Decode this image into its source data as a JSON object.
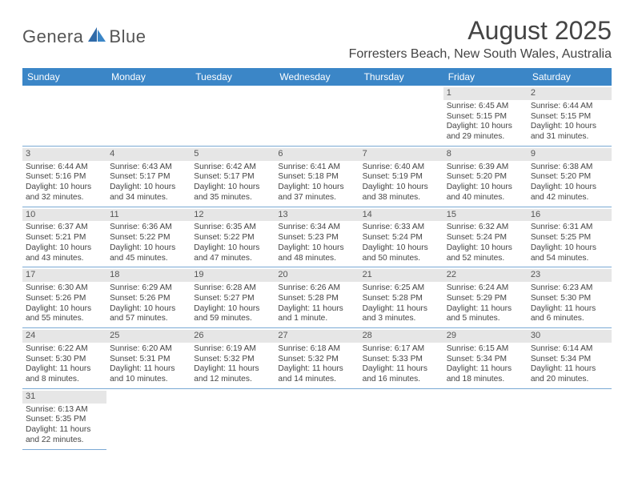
{
  "brand": {
    "name_l": "Genera",
    "name_r": "Blue"
  },
  "title": "August 2025",
  "location": "Forresters Beach, New South Wales, Australia",
  "colors": {
    "header_bg": "#3b86c7",
    "daynum_bg": "#e6e6e6",
    "divider": "#7aa9d4",
    "title_color": "#444444"
  },
  "day_headers": [
    "Sunday",
    "Monday",
    "Tuesday",
    "Wednesday",
    "Thursday",
    "Friday",
    "Saturday"
  ],
  "weeks": [
    [
      null,
      null,
      null,
      null,
      null,
      {
        "n": "1",
        "sr": "Sunrise: 6:45 AM",
        "ss": "Sunset: 5:15 PM",
        "d1": "Daylight: 10 hours",
        "d2": "and 29 minutes."
      },
      {
        "n": "2",
        "sr": "Sunrise: 6:44 AM",
        "ss": "Sunset: 5:15 PM",
        "d1": "Daylight: 10 hours",
        "d2": "and 31 minutes."
      }
    ],
    [
      {
        "n": "3",
        "sr": "Sunrise: 6:44 AM",
        "ss": "Sunset: 5:16 PM",
        "d1": "Daylight: 10 hours",
        "d2": "and 32 minutes."
      },
      {
        "n": "4",
        "sr": "Sunrise: 6:43 AM",
        "ss": "Sunset: 5:17 PM",
        "d1": "Daylight: 10 hours",
        "d2": "and 34 minutes."
      },
      {
        "n": "5",
        "sr": "Sunrise: 6:42 AM",
        "ss": "Sunset: 5:17 PM",
        "d1": "Daylight: 10 hours",
        "d2": "and 35 minutes."
      },
      {
        "n": "6",
        "sr": "Sunrise: 6:41 AM",
        "ss": "Sunset: 5:18 PM",
        "d1": "Daylight: 10 hours",
        "d2": "and 37 minutes."
      },
      {
        "n": "7",
        "sr": "Sunrise: 6:40 AM",
        "ss": "Sunset: 5:19 PM",
        "d1": "Daylight: 10 hours",
        "d2": "and 38 minutes."
      },
      {
        "n": "8",
        "sr": "Sunrise: 6:39 AM",
        "ss": "Sunset: 5:20 PM",
        "d1": "Daylight: 10 hours",
        "d2": "and 40 minutes."
      },
      {
        "n": "9",
        "sr": "Sunrise: 6:38 AM",
        "ss": "Sunset: 5:20 PM",
        "d1": "Daylight: 10 hours",
        "d2": "and 42 minutes."
      }
    ],
    [
      {
        "n": "10",
        "sr": "Sunrise: 6:37 AM",
        "ss": "Sunset: 5:21 PM",
        "d1": "Daylight: 10 hours",
        "d2": "and 43 minutes."
      },
      {
        "n": "11",
        "sr": "Sunrise: 6:36 AM",
        "ss": "Sunset: 5:22 PM",
        "d1": "Daylight: 10 hours",
        "d2": "and 45 minutes."
      },
      {
        "n": "12",
        "sr": "Sunrise: 6:35 AM",
        "ss": "Sunset: 5:22 PM",
        "d1": "Daylight: 10 hours",
        "d2": "and 47 minutes."
      },
      {
        "n": "13",
        "sr": "Sunrise: 6:34 AM",
        "ss": "Sunset: 5:23 PM",
        "d1": "Daylight: 10 hours",
        "d2": "and 48 minutes."
      },
      {
        "n": "14",
        "sr": "Sunrise: 6:33 AM",
        "ss": "Sunset: 5:24 PM",
        "d1": "Daylight: 10 hours",
        "d2": "and 50 minutes."
      },
      {
        "n": "15",
        "sr": "Sunrise: 6:32 AM",
        "ss": "Sunset: 5:24 PM",
        "d1": "Daylight: 10 hours",
        "d2": "and 52 minutes."
      },
      {
        "n": "16",
        "sr": "Sunrise: 6:31 AM",
        "ss": "Sunset: 5:25 PM",
        "d1": "Daylight: 10 hours",
        "d2": "and 54 minutes."
      }
    ],
    [
      {
        "n": "17",
        "sr": "Sunrise: 6:30 AM",
        "ss": "Sunset: 5:26 PM",
        "d1": "Daylight: 10 hours",
        "d2": "and 55 minutes."
      },
      {
        "n": "18",
        "sr": "Sunrise: 6:29 AM",
        "ss": "Sunset: 5:26 PM",
        "d1": "Daylight: 10 hours",
        "d2": "and 57 minutes."
      },
      {
        "n": "19",
        "sr": "Sunrise: 6:28 AM",
        "ss": "Sunset: 5:27 PM",
        "d1": "Daylight: 10 hours",
        "d2": "and 59 minutes."
      },
      {
        "n": "20",
        "sr": "Sunrise: 6:26 AM",
        "ss": "Sunset: 5:28 PM",
        "d1": "Daylight: 11 hours",
        "d2": "and 1 minute."
      },
      {
        "n": "21",
        "sr": "Sunrise: 6:25 AM",
        "ss": "Sunset: 5:28 PM",
        "d1": "Daylight: 11 hours",
        "d2": "and 3 minutes."
      },
      {
        "n": "22",
        "sr": "Sunrise: 6:24 AM",
        "ss": "Sunset: 5:29 PM",
        "d1": "Daylight: 11 hours",
        "d2": "and 5 minutes."
      },
      {
        "n": "23",
        "sr": "Sunrise: 6:23 AM",
        "ss": "Sunset: 5:30 PM",
        "d1": "Daylight: 11 hours",
        "d2": "and 6 minutes."
      }
    ],
    [
      {
        "n": "24",
        "sr": "Sunrise: 6:22 AM",
        "ss": "Sunset: 5:30 PM",
        "d1": "Daylight: 11 hours",
        "d2": "and 8 minutes."
      },
      {
        "n": "25",
        "sr": "Sunrise: 6:20 AM",
        "ss": "Sunset: 5:31 PM",
        "d1": "Daylight: 11 hours",
        "d2": "and 10 minutes."
      },
      {
        "n": "26",
        "sr": "Sunrise: 6:19 AM",
        "ss": "Sunset: 5:32 PM",
        "d1": "Daylight: 11 hours",
        "d2": "and 12 minutes."
      },
      {
        "n": "27",
        "sr": "Sunrise: 6:18 AM",
        "ss": "Sunset: 5:32 PM",
        "d1": "Daylight: 11 hours",
        "d2": "and 14 minutes."
      },
      {
        "n": "28",
        "sr": "Sunrise: 6:17 AM",
        "ss": "Sunset: 5:33 PM",
        "d1": "Daylight: 11 hours",
        "d2": "and 16 minutes."
      },
      {
        "n": "29",
        "sr": "Sunrise: 6:15 AM",
        "ss": "Sunset: 5:34 PM",
        "d1": "Daylight: 11 hours",
        "d2": "and 18 minutes."
      },
      {
        "n": "30",
        "sr": "Sunrise: 6:14 AM",
        "ss": "Sunset: 5:34 PM",
        "d1": "Daylight: 11 hours",
        "d2": "and 20 minutes."
      }
    ],
    [
      {
        "n": "31",
        "sr": "Sunrise: 6:13 AM",
        "ss": "Sunset: 5:35 PM",
        "d1": "Daylight: 11 hours",
        "d2": "and 22 minutes."
      },
      null,
      null,
      null,
      null,
      null,
      null
    ]
  ]
}
